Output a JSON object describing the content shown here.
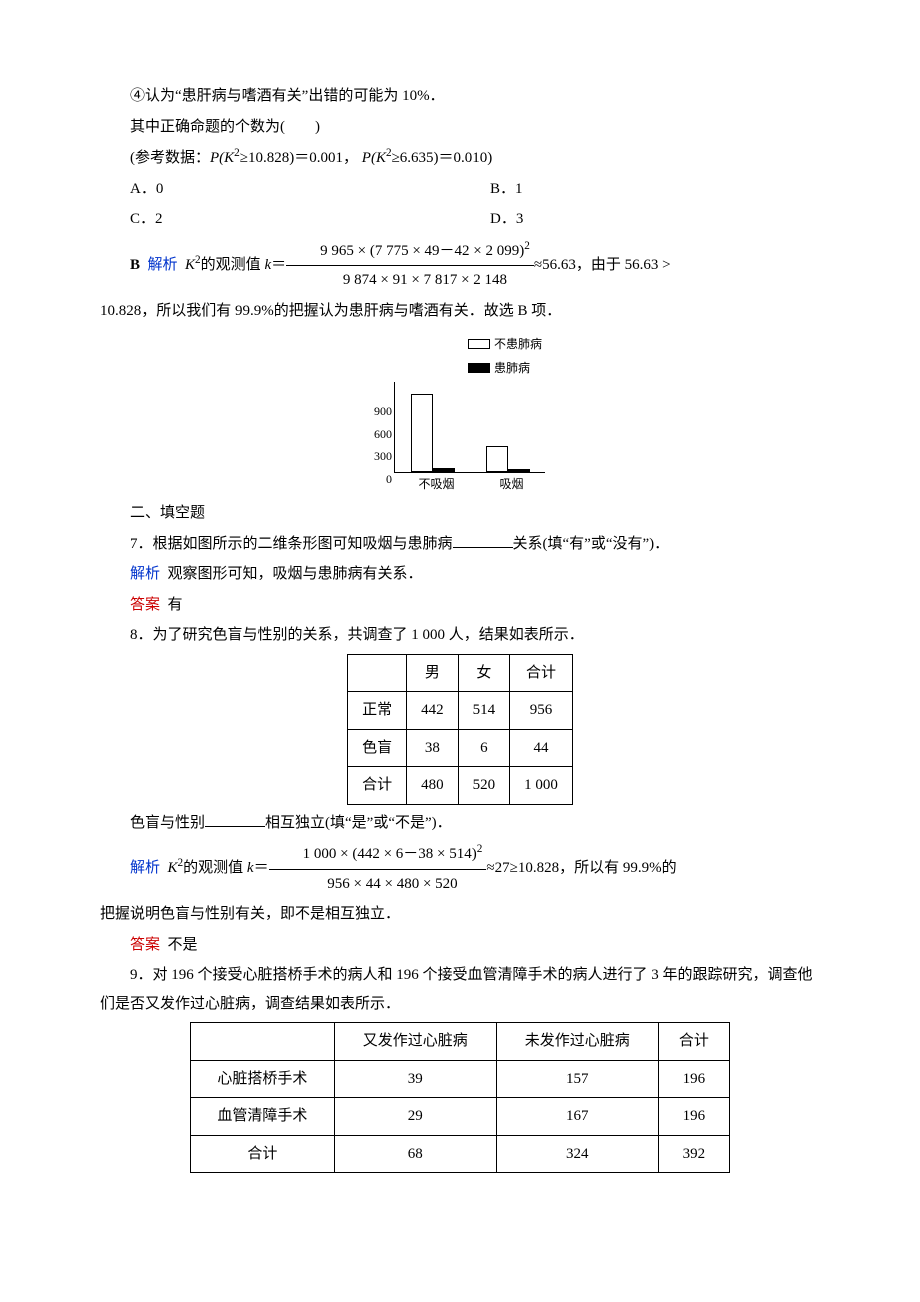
{
  "q6": {
    "stmt4": "④认为“患肝病与嗜酒有关”出错的可能为 10%．",
    "stem": "其中正确命题的个数为(　　)",
    "ref": "(参考数据：",
    "ref_p1_lhs": "P(K",
    "ref_p1_rhs": "≥10.828)＝0.001，",
    "ref_p2_lhs": "P(K",
    "ref_p2_rhs": "≥6.635)＝0.010)",
    "optA": "A．0",
    "optB": "B．1",
    "optC": "C．2",
    "optD": "D．3",
    "answer": "B",
    "sol_label": "解析",
    "sol_k_pre": "K",
    "sol_k_txt": "的观测值 ",
    "sol_k_var": "k",
    "frac_num": "9 965 × (7 775 × 49－42 × 2 099)",
    "frac_den": "9 874 × 91 × 7 817 × 2 148",
    "sol_tail": "≈56.63，由于 56.63 >",
    "sol_line2": "10.828，所以我们有 99.9%的把握认为患肝病与嗜酒有关．故选 B 项．"
  },
  "chart": {
    "legend": {
      "a": "不患肺病",
      "b": "患肺病"
    },
    "yticks": [
      "0",
      "300",
      "600",
      "900"
    ],
    "bars": {
      "g1": {
        "open_h": 78,
        "solid_h": 4
      },
      "g2": {
        "open_h": 26,
        "solid_h": 3
      }
    },
    "xlabels": [
      "不吸烟",
      "吸烟"
    ],
    "colors": {
      "open_fill": "#ffffff",
      "solid_fill": "#000000"
    }
  },
  "sec2": "二、填空题",
  "q7": {
    "text_a": "7．根据如图所示的二维条形图可知吸烟与患肺病",
    "text_b": "关系(填“有”或“没有”)．",
    "sol_label": "解析",
    "sol": "观察图形可知，吸烟与患肺病有关系．",
    "ans_label": "答案",
    "ans": "有"
  },
  "q8": {
    "stem": "8．为了研究色盲与性别的关系，共调查了 1 000 人，结果如表所示．",
    "table": {
      "headers": [
        "",
        "男",
        "女",
        "合计"
      ],
      "rows": [
        [
          "正常",
          "442",
          "514",
          "956"
        ],
        [
          "色盲",
          "38",
          "6",
          "44"
        ],
        [
          "合计",
          "480",
          "520",
          "1 000"
        ]
      ]
    },
    "tail_a": "色盲与性别",
    "tail_b": "相互独立(填“是”或“不是”)．",
    "sol_label": "解析",
    "sol_k_pre": "K",
    "sol_k_txt": "的观测值 ",
    "sol_k_var": "k",
    "frac_num": "1 000 × (442 × 6－38 × 514)",
    "frac_den": "956 × 44 × 480 × 520",
    "sol_tail": "≈27≥10.828，所以有 99.9%的",
    "sol_line2": "把握说明色盲与性别有关，即不是相互独立．",
    "ans_label": "答案",
    "ans": "不是"
  },
  "q9": {
    "stem": "9．对 196 个接受心脏搭桥手术的病人和 196 个接受血管清障手术的病人进行了 3 年的跟踪研究，调查他们是否又发作过心脏病，调查结果如表所示．",
    "table": {
      "headers": [
        "",
        "又发作过心脏病",
        "未发作过心脏病",
        "合计"
      ],
      "rows": [
        [
          "心脏搭桥手术",
          "39",
          "157",
          "196"
        ],
        [
          "血管清障手术",
          "29",
          "167",
          "196"
        ],
        [
          "合计",
          "68",
          "324",
          "392"
        ]
      ]
    }
  }
}
